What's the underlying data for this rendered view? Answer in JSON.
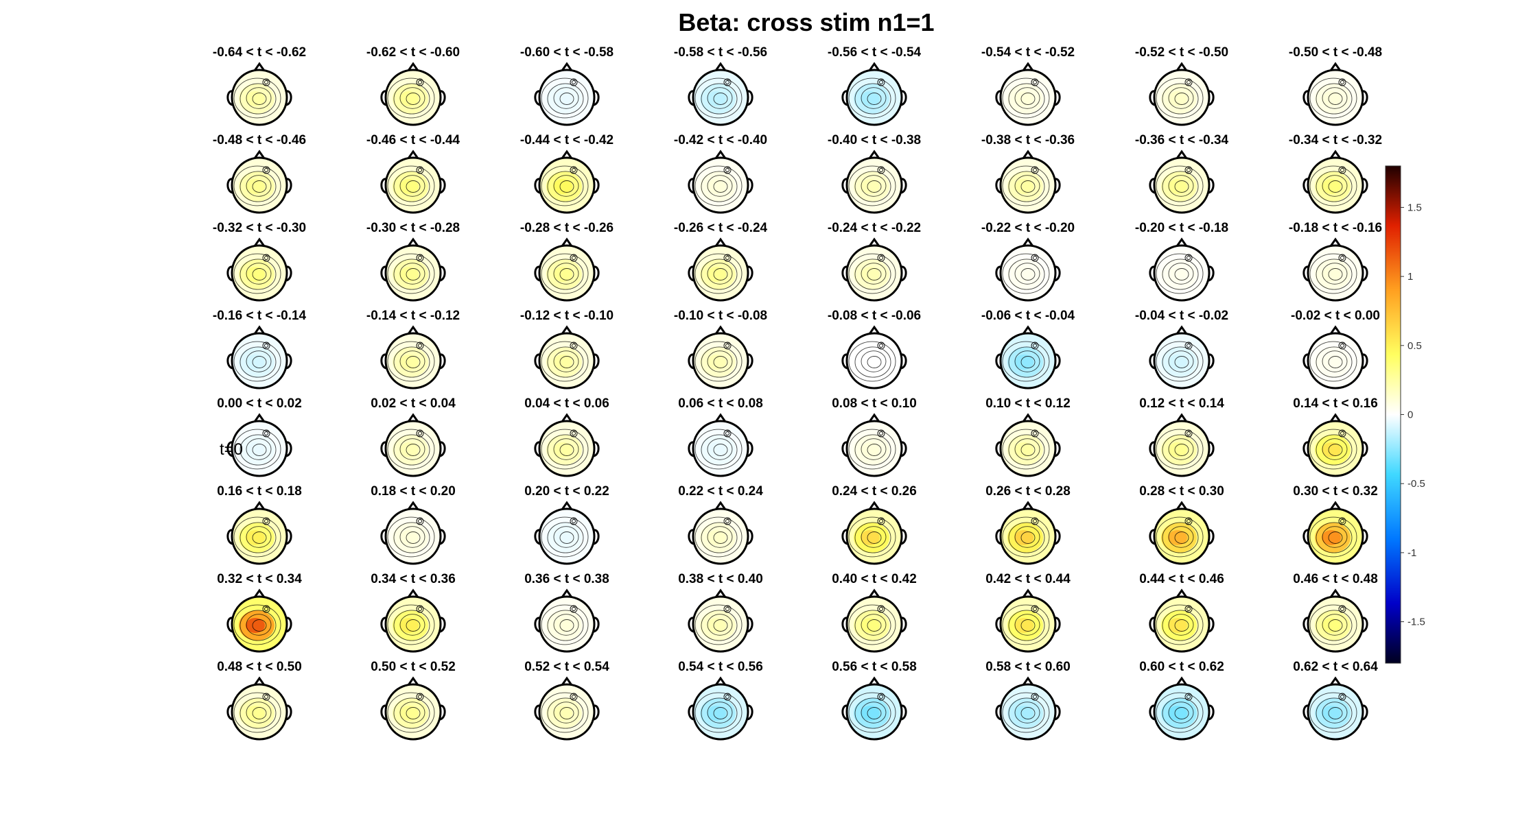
{
  "chart_data": {
    "type": "heatmap",
    "title": "Beta: cross stim  n1=1",
    "grid": {
      "rows": 8,
      "cols": 8
    },
    "marker_label": "t=0",
    "colorbar": {
      "min": -1.8,
      "max": 1.8,
      "ticks": [
        1.5,
        1,
        0.5,
        0,
        -0.5,
        -1,
        -1.5
      ],
      "tick_labels": [
        "1.5",
        "1",
        "0.5",
        "0",
        "-0.5",
        "-1",
        "-1.5"
      ],
      "colormap": [
        [
          0.0,
          "#000020"
        ],
        [
          0.12,
          "#0000c8"
        ],
        [
          0.25,
          "#0078ff"
        ],
        [
          0.38,
          "#40d8ff"
        ],
        [
          0.5,
          "#ffffff"
        ],
        [
          0.62,
          "#ffff60"
        ],
        [
          0.75,
          "#ffa020"
        ],
        [
          0.88,
          "#e02000"
        ],
        [
          1.0,
          "#200000"
        ]
      ]
    },
    "panels": [
      {
        "label": "-0.64 < t < -0.62",
        "value": 0.25
      },
      {
        "label": "-0.62 < t < -0.60",
        "value": 0.3
      },
      {
        "label": "-0.60 < t < -0.58",
        "value": -0.05
      },
      {
        "label": "-0.58 < t < -0.56",
        "value": -0.15
      },
      {
        "label": "-0.56 < t < -0.54",
        "value": -0.2
      },
      {
        "label": "-0.54 < t < -0.52",
        "value": 0.1
      },
      {
        "label": "-0.52 < t < -0.50",
        "value": 0.15
      },
      {
        "label": "-0.50 < t < -0.48",
        "value": 0.1
      },
      {
        "label": "-0.48 < t < -0.46",
        "value": 0.3
      },
      {
        "label": "-0.46 < t < -0.44",
        "value": 0.35
      },
      {
        "label": "-0.44 < t < -0.42",
        "value": 0.45
      },
      {
        "label": "-0.42 < t < -0.40",
        "value": 0.1
      },
      {
        "label": "-0.40 < t < -0.38",
        "value": 0.2
      },
      {
        "label": "-0.38 < t < -0.36",
        "value": 0.25
      },
      {
        "label": "-0.36 < t < -0.34",
        "value": 0.3
      },
      {
        "label": "-0.34 < t < -0.32",
        "value": 0.35
      },
      {
        "label": "-0.32 < t < -0.30",
        "value": 0.35
      },
      {
        "label": "-0.30 < t < -0.28",
        "value": 0.3
      },
      {
        "label": "-0.28 < t < -0.26",
        "value": 0.3
      },
      {
        "label": "-0.26 < t < -0.24",
        "value": 0.3
      },
      {
        "label": "-0.24 < t < -0.22",
        "value": 0.2
      },
      {
        "label": "-0.22 < t < -0.20",
        "value": 0.05
      },
      {
        "label": "-0.20 < t < -0.18",
        "value": 0.05
      },
      {
        "label": "-0.18 < t < -0.16",
        "value": 0.1
      },
      {
        "label": "-0.16 < t < -0.14",
        "value": -0.1
      },
      {
        "label": "-0.14 < t < -0.12",
        "value": 0.25
      },
      {
        "label": "-0.12 < t < -0.10",
        "value": 0.25
      },
      {
        "label": "-0.10 < t < -0.08",
        "value": 0.2
      },
      {
        "label": "-0.08 < t < -0.06",
        "value": 0.0
      },
      {
        "label": "-0.06 < t < -0.04",
        "value": -0.25
      },
      {
        "label": "-0.04 < t < -0.02",
        "value": -0.1
      },
      {
        "label": "-0.02 < t < 0.00",
        "value": 0.05
      },
      {
        "label": "0.00 < t < 0.02",
        "value": -0.05
      },
      {
        "label": "0.02 < t < 0.04",
        "value": 0.2
      },
      {
        "label": "0.04 < t < 0.06",
        "value": 0.25
      },
      {
        "label": "0.06 < t < 0.08",
        "value": -0.05
      },
      {
        "label": "0.08 < t < 0.10",
        "value": 0.1
      },
      {
        "label": "0.10 < t < 0.12",
        "value": 0.25
      },
      {
        "label": "0.12 < t < 0.14",
        "value": 0.3
      },
      {
        "label": "0.14 < t < 0.16",
        "value": 0.55
      },
      {
        "label": "0.16 < t < 0.18",
        "value": 0.5
      },
      {
        "label": "0.18 < t < 0.20",
        "value": 0.1
      },
      {
        "label": "0.20 < t < 0.22",
        "value": -0.05
      },
      {
        "label": "0.22 < t < 0.24",
        "value": 0.15
      },
      {
        "label": "0.24 < t < 0.26",
        "value": 0.6
      },
      {
        "label": "0.26 < t < 0.28",
        "value": 0.65
      },
      {
        "label": "0.28 < t < 0.30",
        "value": 0.8
      },
      {
        "label": "0.30 < t < 0.32",
        "value": 0.95
      },
      {
        "label": "0.32 < t < 0.34",
        "value": 1.15
      },
      {
        "label": "0.34 < t < 0.36",
        "value": 0.5
      },
      {
        "label": "0.36 < t < 0.38",
        "value": 0.1
      },
      {
        "label": "0.38 < t < 0.40",
        "value": 0.2
      },
      {
        "label": "0.40 < t < 0.42",
        "value": 0.35
      },
      {
        "label": "0.42 < t < 0.44",
        "value": 0.55
      },
      {
        "label": "0.44 < t < 0.46",
        "value": 0.55
      },
      {
        "label": "0.46 < t < 0.48",
        "value": 0.35
      },
      {
        "label": "0.48 < t < 0.50",
        "value": 0.3
      },
      {
        "label": "0.50 < t < 0.52",
        "value": 0.3
      },
      {
        "label": "0.52 < t < 0.54",
        "value": 0.2
      },
      {
        "label": "0.54 < t < 0.56",
        "value": -0.25
      },
      {
        "label": "0.56 < t < 0.58",
        "value": -0.3
      },
      {
        "label": "0.58 < t < 0.60",
        "value": -0.2
      },
      {
        "label": "0.60 < t < 0.62",
        "value": -0.3
      },
      {
        "label": "0.62 < t < 0.64",
        "value": -0.25
      }
    ]
  }
}
